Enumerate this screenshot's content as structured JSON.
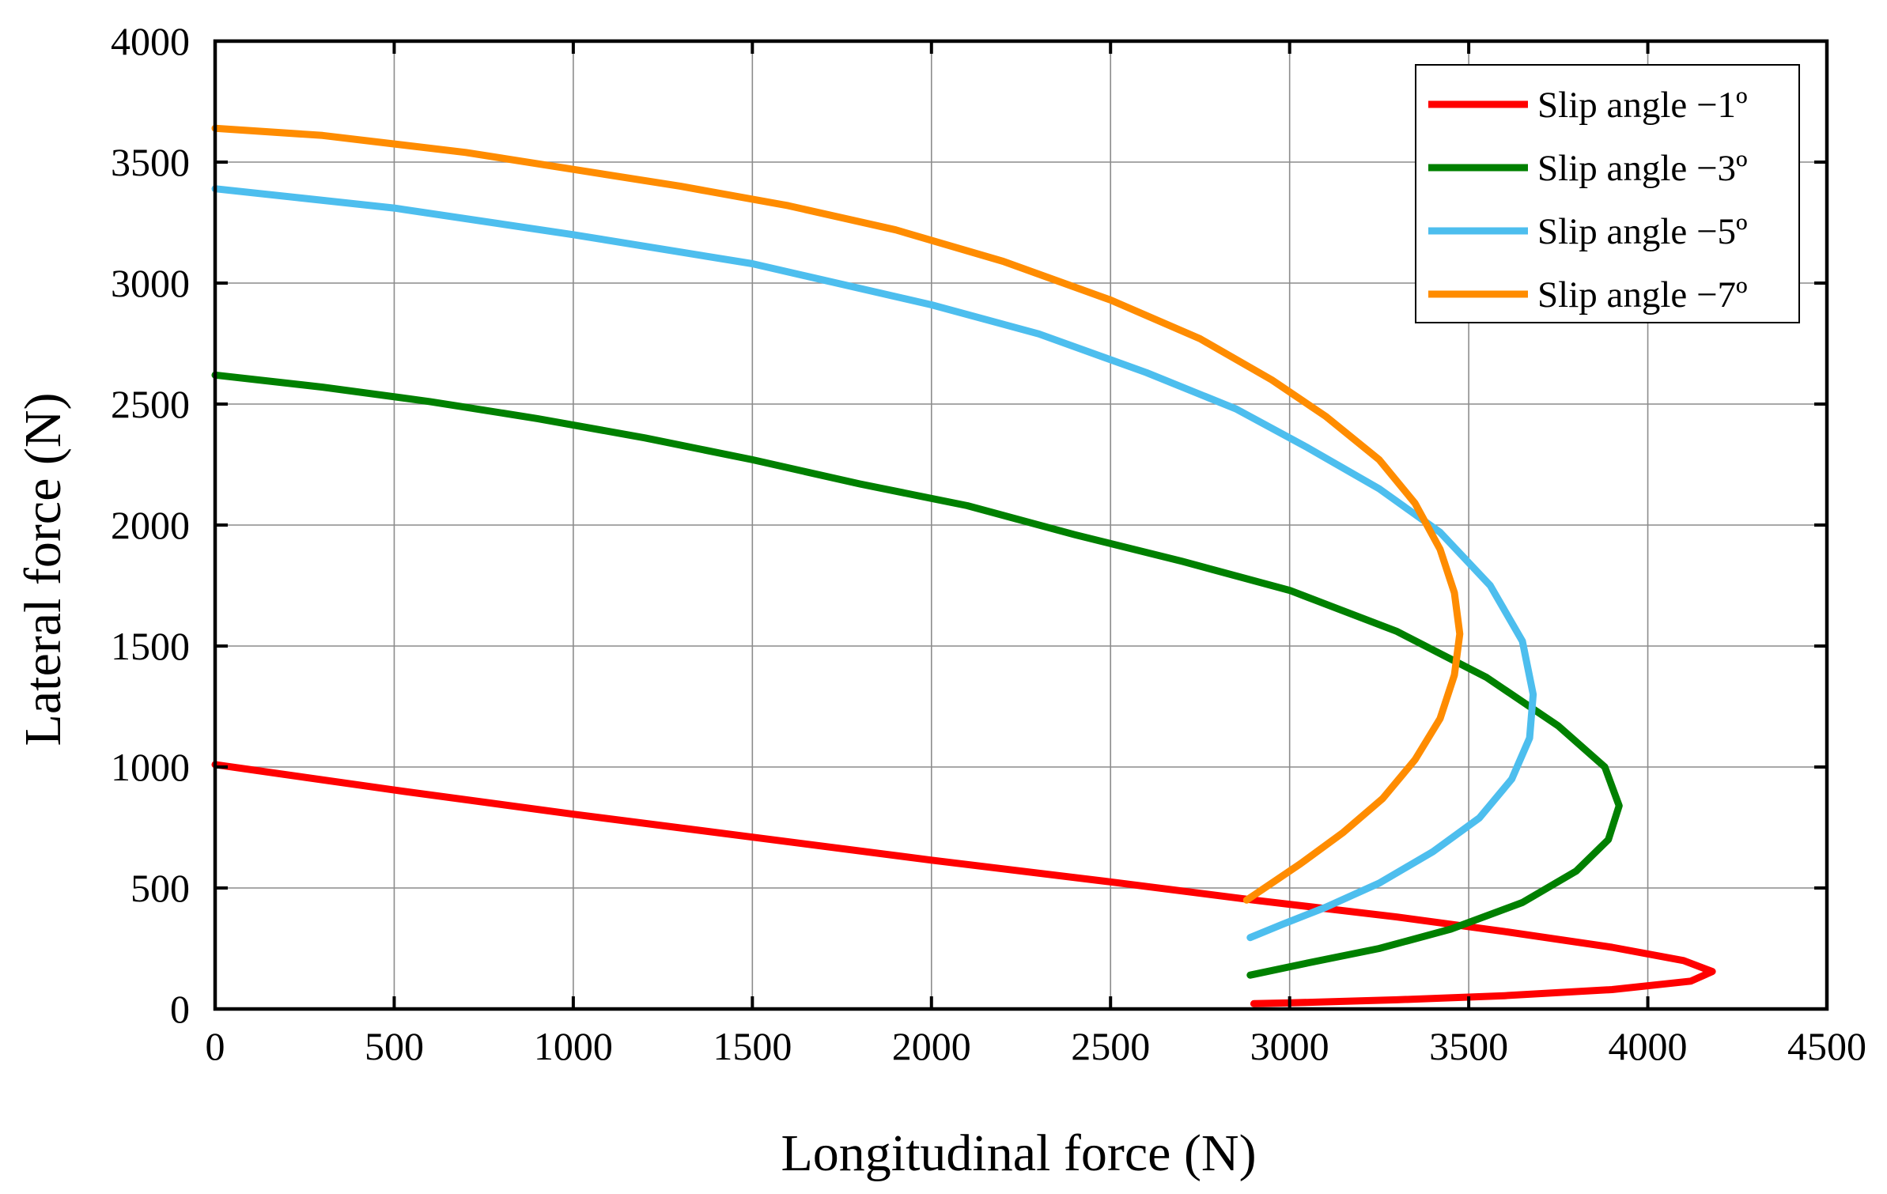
{
  "chart_data": {
    "type": "line",
    "title": "",
    "xlabel": "Longitudinal force (N)",
    "ylabel": "Lateral force (N)",
    "xlim": [
      0,
      4500
    ],
    "ylim": [
      0,
      4000
    ],
    "xticks": [
      0,
      500,
      1000,
      1500,
      2000,
      2500,
      3000,
      3500,
      4000,
      4500
    ],
    "yticks": [
      0,
      500,
      1000,
      1500,
      2000,
      2500,
      3000,
      3500,
      4000
    ],
    "grid": true,
    "legend_position": "top-right",
    "series": [
      {
        "name": "Slip angle −1º",
        "color": "#ff0000",
        "points": [
          [
            0,
            1010
          ],
          [
            500,
            905
          ],
          [
            1000,
            805
          ],
          [
            1500,
            710
          ],
          [
            2000,
            615
          ],
          [
            2500,
            525
          ],
          [
            2900,
            450
          ],
          [
            3300,
            380
          ],
          [
            3600,
            320
          ],
          [
            3900,
            255
          ],
          [
            4100,
            200
          ],
          [
            4180,
            155
          ],
          [
            4120,
            115
          ],
          [
            3900,
            80
          ],
          [
            3600,
            55
          ],
          [
            3300,
            38
          ],
          [
            3000,
            25
          ],
          [
            2900,
            22
          ]
        ]
      },
      {
        "name": "Slip angle −3º",
        "color": "#008000",
        "points": [
          [
            0,
            2620
          ],
          [
            300,
            2570
          ],
          [
            600,
            2510
          ],
          [
            900,
            2440
          ],
          [
            1200,
            2360
          ],
          [
            1500,
            2270
          ],
          [
            1800,
            2170
          ],
          [
            2100,
            2080
          ],
          [
            2400,
            1960
          ],
          [
            2700,
            1850
          ],
          [
            3000,
            1730
          ],
          [
            3300,
            1560
          ],
          [
            3550,
            1370
          ],
          [
            3750,
            1170
          ],
          [
            3880,
            1000
          ],
          [
            3920,
            840
          ],
          [
            3890,
            700
          ],
          [
            3800,
            570
          ],
          [
            3650,
            440
          ],
          [
            3450,
            330
          ],
          [
            3250,
            250
          ],
          [
            3050,
            190
          ],
          [
            2890,
            140
          ]
        ]
      },
      {
        "name": "Slip angle −5º",
        "color": "#4dbeee",
        "points": [
          [
            0,
            3390
          ],
          [
            500,
            3310
          ],
          [
            1000,
            3200
          ],
          [
            1500,
            3080
          ],
          [
            2000,
            2910
          ],
          [
            2300,
            2790
          ],
          [
            2600,
            2630
          ],
          [
            2850,
            2480
          ],
          [
            3050,
            2320
          ],
          [
            3250,
            2150
          ],
          [
            3420,
            1970
          ],
          [
            3560,
            1750
          ],
          [
            3650,
            1520
          ],
          [
            3680,
            1300
          ],
          [
            3670,
            1120
          ],
          [
            3620,
            950
          ],
          [
            3530,
            790
          ],
          [
            3400,
            650
          ],
          [
            3250,
            520
          ],
          [
            3100,
            420
          ],
          [
            2980,
            350
          ],
          [
            2890,
            295
          ]
        ]
      },
      {
        "name": "Slip angle −7º",
        "color": "#ff8c00",
        "points": [
          [
            0,
            3640
          ],
          [
            300,
            3610
          ],
          [
            700,
            3540
          ],
          [
            1000,
            3470
          ],
          [
            1300,
            3400
          ],
          [
            1600,
            3320
          ],
          [
            1900,
            3220
          ],
          [
            2200,
            3090
          ],
          [
            2500,
            2930
          ],
          [
            2750,
            2770
          ],
          [
            2950,
            2600
          ],
          [
            3100,
            2450
          ],
          [
            3250,
            2270
          ],
          [
            3350,
            2090
          ],
          [
            3420,
            1900
          ],
          [
            3460,
            1720
          ],
          [
            3475,
            1550
          ],
          [
            3460,
            1380
          ],
          [
            3420,
            1200
          ],
          [
            3350,
            1030
          ],
          [
            3260,
            870
          ],
          [
            3150,
            730
          ],
          [
            3030,
            600
          ],
          [
            2930,
            500
          ],
          [
            2880,
            450
          ]
        ]
      }
    ]
  }
}
